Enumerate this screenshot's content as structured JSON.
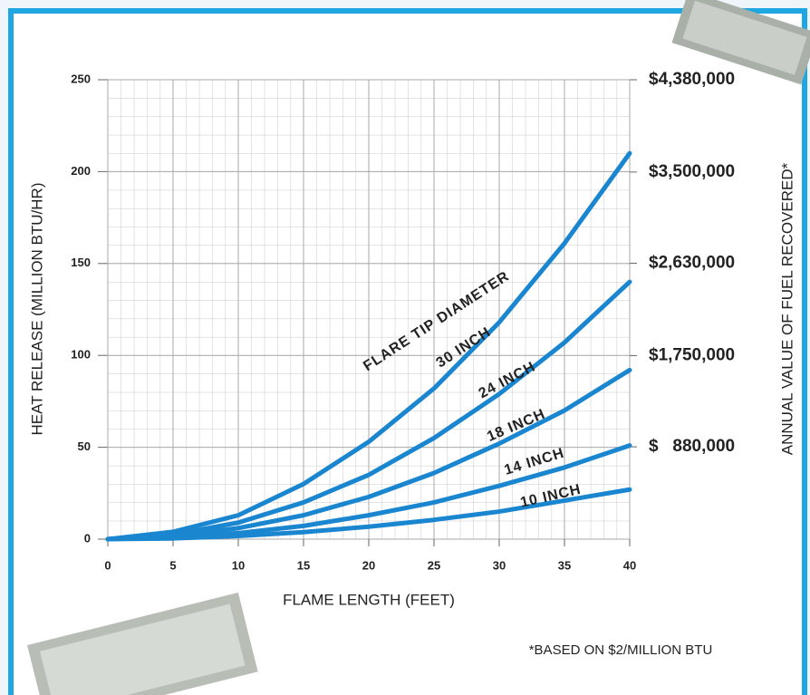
{
  "chart_data": {
    "type": "line",
    "x_label": "FLAME LENGTH (FEET)",
    "y_label": "HEAT RELEASE (MILLION BTU/HR)",
    "y2_label": "ANNUAL VALUE OF FUEL RECOVERED*",
    "annotation": "FLARE TIP DIAMETER",
    "footnote": "*BASED ON $2/MILLION BTU",
    "x": [
      0,
      5,
      10,
      15,
      20,
      25,
      30,
      35,
      40
    ],
    "series": [
      {
        "name": "30 INCH",
        "color": "#1a86d0",
        "values": [
          0,
          4,
          13,
          30,
          53,
          82,
          118,
          161,
          210
        ]
      },
      {
        "name": "24 INCH",
        "color": "#1a86d0",
        "values": [
          0,
          2.5,
          9,
          20,
          35,
          55,
          79,
          107,
          140
        ]
      },
      {
        "name": "18 INCH",
        "color": "#1a86d0",
        "values": [
          0,
          1.6,
          6,
          13,
          23,
          36,
          52,
          70,
          92
        ]
      },
      {
        "name": "14 INCH",
        "color": "#1a86d0",
        "values": [
          0,
          0.9,
          3.3,
          7.2,
          13,
          20,
          29,
          39,
          51
        ]
      },
      {
        "name": "10 INCH",
        "color": "#1a86d0",
        "values": [
          0,
          0.4,
          1.7,
          3.8,
          6.8,
          10.5,
          15,
          21,
          27
        ]
      }
    ],
    "xlim": [
      0,
      40
    ],
    "xticks": [
      0,
      5,
      10,
      15,
      20,
      25,
      30,
      35,
      40
    ],
    "ylim": [
      0,
      250
    ],
    "yticks": [
      0,
      50,
      100,
      150,
      200,
      250
    ],
    "y2lim": [
      0,
      4380000
    ],
    "y2ticks": [
      {
        "value": 880000,
        "label": "$   880,000"
      },
      {
        "value": 1750000,
        "label": "$1,750,000"
      },
      {
        "value": 2630000,
        "label": "$2,630,000"
      },
      {
        "value": 3500000,
        "label": "$3,500,000"
      },
      {
        "value": 4380000,
        "label": "$4,380,000"
      }
    ],
    "grid": true
  }
}
